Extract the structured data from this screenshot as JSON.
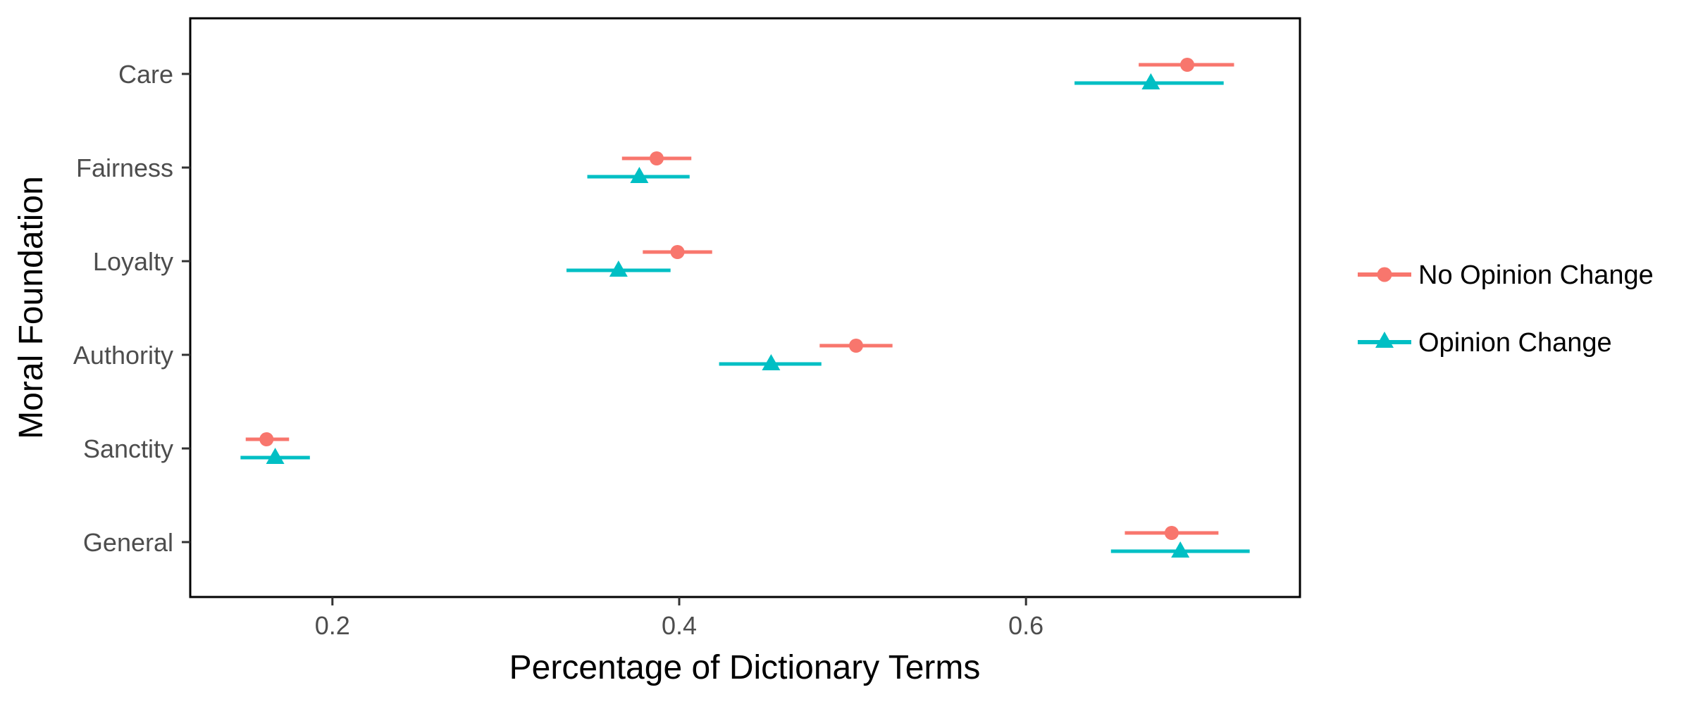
{
  "chart_data": {
    "type": "scatter",
    "xlabel": "Percentage of Dictionary Terms",
    "ylabel": "Moral Foundation",
    "xlim": [
      0.118,
      0.758
    ],
    "xticks": [
      0.2,
      0.4,
      0.6
    ],
    "xtick_labels": [
      "0.2",
      "0.4",
      "0.6"
    ],
    "categories": [
      "Care",
      "Fairness",
      "Loyalty",
      "Authority",
      "Sanctity",
      "General"
    ],
    "legend_position": "right",
    "grid": false,
    "series": [
      {
        "name": "No Opinion Change",
        "color": "#F8766D",
        "marker": "circle",
        "values": [
          0.693,
          0.387,
          0.399,
          0.502,
          0.162,
          0.684
        ],
        "lower": [
          0.665,
          0.367,
          0.379,
          0.481,
          0.15,
          0.657
        ],
        "upper": [
          0.72,
          0.407,
          0.419,
          0.523,
          0.175,
          0.711
        ]
      },
      {
        "name": "Opinion Change",
        "color": "#00BFC4",
        "marker": "triangle",
        "values": [
          0.672,
          0.377,
          0.365,
          0.453,
          0.167,
          0.689
        ],
        "lower": [
          0.628,
          0.347,
          0.335,
          0.423,
          0.147,
          0.649
        ],
        "upper": [
          0.714,
          0.406,
          0.395,
          0.482,
          0.187,
          0.729
        ]
      }
    ]
  }
}
